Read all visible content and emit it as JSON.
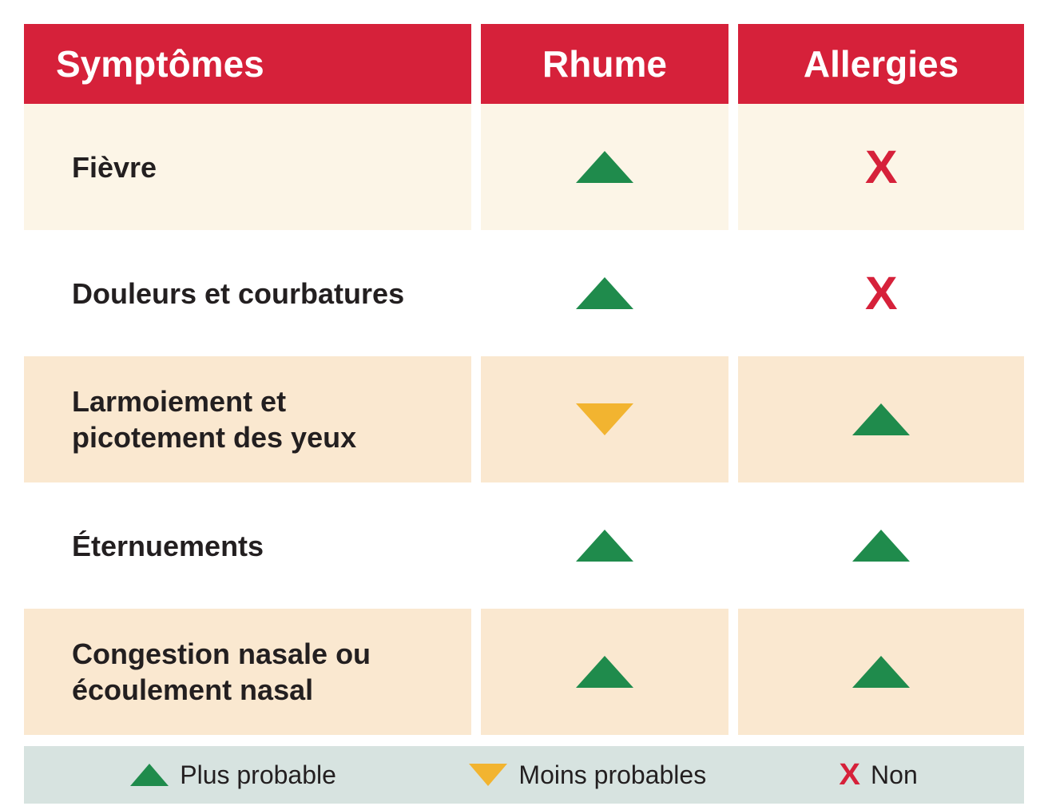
{
  "colors": {
    "header_bg": "#d6213a",
    "header_fg": "#ffffff",
    "text": "#231f20",
    "row_alt_a": "#fcf5e7",
    "row_alt_b": "#ffffff",
    "row_alt_c": "#fae8d0",
    "legend_bg": "#d7e3e0",
    "green": "#1f8b4c",
    "yellow": "#f2b430",
    "red": "#d6213a"
  },
  "header": {
    "symptoms": "Symptômes",
    "col1": "Rhume",
    "col2": "Allergies"
  },
  "legend": {
    "more": "Plus probable",
    "less": "Moins probables",
    "no": "Non"
  },
  "icon_defs": {
    "up": {
      "shape": "tri-up",
      "color_key": "green"
    },
    "down": {
      "shape": "tri-down",
      "color_key": "yellow"
    },
    "x": {
      "shape": "x-mark",
      "color_key": "red",
      "text": "X"
    }
  },
  "rows": [
    {
      "label": "Fièvre",
      "col1": "up",
      "col2": "x",
      "bg_key": "row_alt_a"
    },
    {
      "label": "Douleurs et courbatures",
      "col1": "up",
      "col2": "x",
      "bg_key": "row_alt_b"
    },
    {
      "label": "Larmoiement et picotement des yeux",
      "col1": "down",
      "col2": "up",
      "bg_key": "row_alt_c"
    },
    {
      "label": "Éternuements",
      "col1": "up",
      "col2": "up",
      "bg_key": "row_alt_b"
    },
    {
      "label": "Congestion nasale ou écoulement nasal",
      "col1": "up",
      "col2": "up",
      "bg_key": "row_alt_c"
    }
  ]
}
